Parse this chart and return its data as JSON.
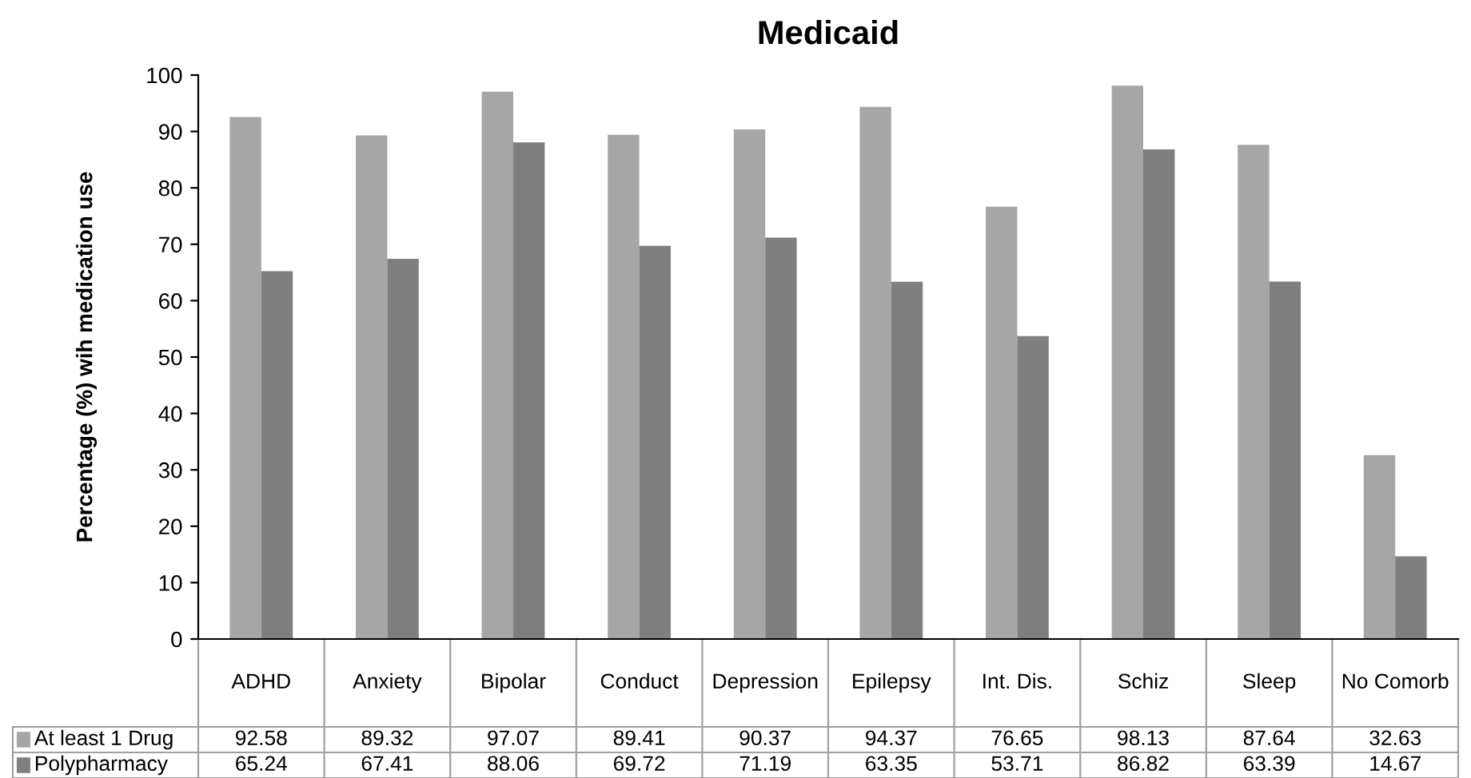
{
  "chart_data": {
    "type": "bar",
    "title": "Medicaid",
    "ylabel": "Percentage (%) wih medication use",
    "categories": [
      "ADHD",
      "Anxiety",
      "Bipolar",
      "Conduct",
      "Depression",
      "Epilepsy",
      "Int. Dis.",
      "Schiz",
      "Sleep",
      "No Comorb"
    ],
    "series": [
      {
        "name": "At least 1 Drug",
        "color": "#a6a6a6",
        "values": [
          92.58,
          89.32,
          97.07,
          89.41,
          90.37,
          94.37,
          76.65,
          98.13,
          87.64,
          32.63
        ]
      },
      {
        "name": "Polypharmacy",
        "color": "#7f7f7f",
        "values": [
          65.24,
          67.41,
          88.06,
          69.72,
          71.19,
          63.35,
          53.71,
          86.82,
          63.39,
          14.67
        ]
      }
    ],
    "ylim": [
      0,
      100
    ],
    "yticks": [
      0,
      10,
      20,
      30,
      40,
      50,
      60,
      70,
      80,
      90,
      100
    ],
    "grid": false,
    "legend": "bottom left",
    "data_labels": true
  }
}
